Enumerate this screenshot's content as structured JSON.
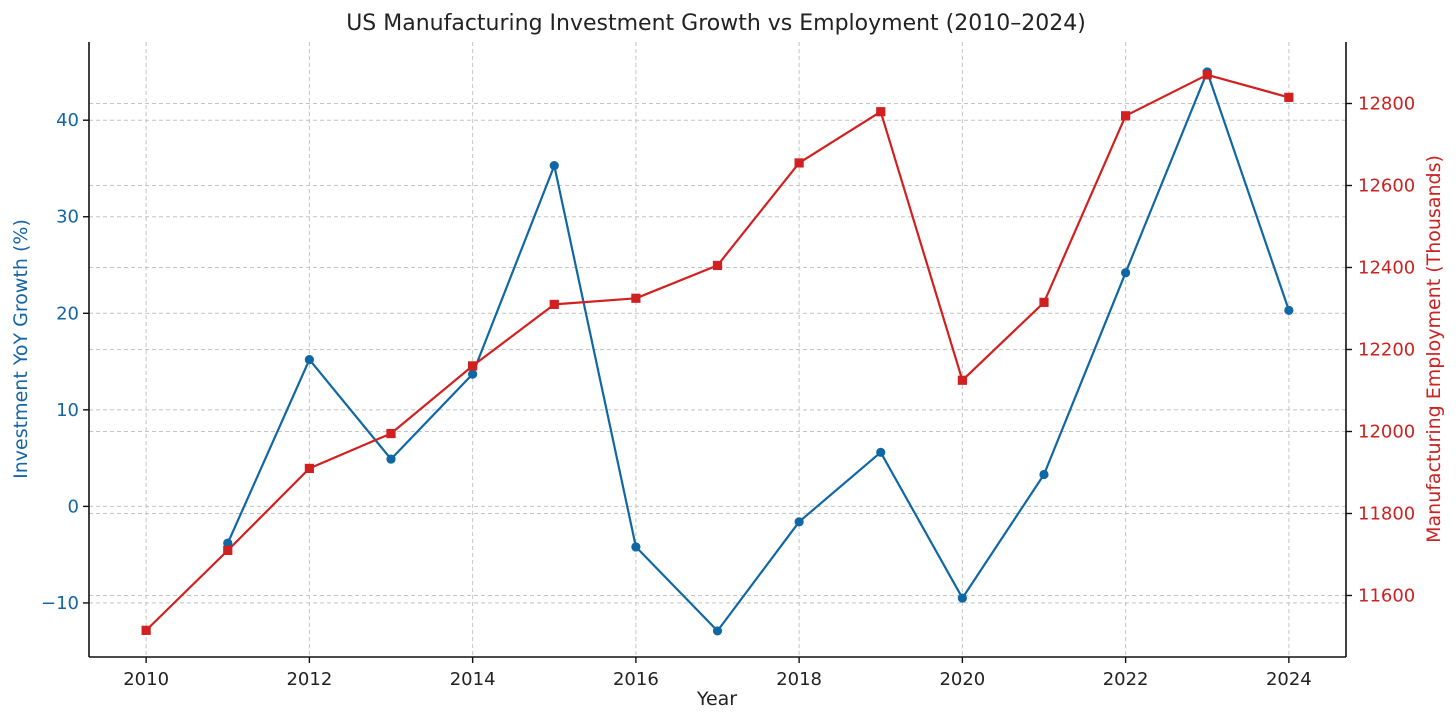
{
  "chart_data": {
    "type": "line",
    "title": "US Manufacturing Investment Growth vs Employment (2010–2024)",
    "xlabel": "Year",
    "ylabel_left": "Investment YoY Growth (%)",
    "ylabel_right": "Manufacturing Employment (Thousands)",
    "x": [
      2010,
      2011,
      2012,
      2013,
      2014,
      2015,
      2016,
      2017,
      2018,
      2019,
      2020,
      2021,
      2022,
      2023,
      2024
    ],
    "xlim": [
      2009.3,
      2024.7
    ],
    "x_ticks": [
      2010,
      2012,
      2014,
      2016,
      2018,
      2020,
      2022,
      2024
    ],
    "x_tick_labels": [
      "2010",
      "2012",
      "2014",
      "2016",
      "2018",
      "2020",
      "2022",
      "2024"
    ],
    "ylim_left": [
      -15.6,
      48.1
    ],
    "ylim_right": [
      11450,
      12950
    ],
    "y_left_ticks": [
      -10,
      0,
      10,
      20,
      30,
      40
    ],
    "y_left_tick_labels": [
      "−10",
      "0",
      "10",
      "20",
      "30",
      "40"
    ],
    "y_right_ticks": [
      11600,
      11800,
      12000,
      12200,
      12400,
      12600,
      12800
    ],
    "y_right_tick_labels": [
      "11600",
      "11800",
      "12000",
      "12200",
      "12400",
      "12600",
      "12800"
    ],
    "grid": true,
    "series": [
      {
        "name": "Investment YoY Growth (%)",
        "axis": "left",
        "color": "#0f67a3",
        "marker": "circle",
        "values": [
          null,
          -3.8,
          15.2,
          4.9,
          13.7,
          35.3,
          -4.2,
          -12.9,
          -1.6,
          5.6,
          -9.5,
          3.3,
          24.2,
          45.0,
          20.3
        ]
      },
      {
        "name": "Manufacturing Employment (Thousands)",
        "axis": "right",
        "color": "#d1201f",
        "marker": "square",
        "values": [
          11515,
          11710,
          11910,
          11995,
          12160,
          12310,
          12325,
          12405,
          12655,
          12780,
          12125,
          12315,
          12770,
          12870,
          12815
        ]
      }
    ]
  },
  "colors": {
    "left_axis": "#1565a6",
    "right_axis": "#cc2222",
    "text": "#222222",
    "grid": "#c4c4c4"
  }
}
